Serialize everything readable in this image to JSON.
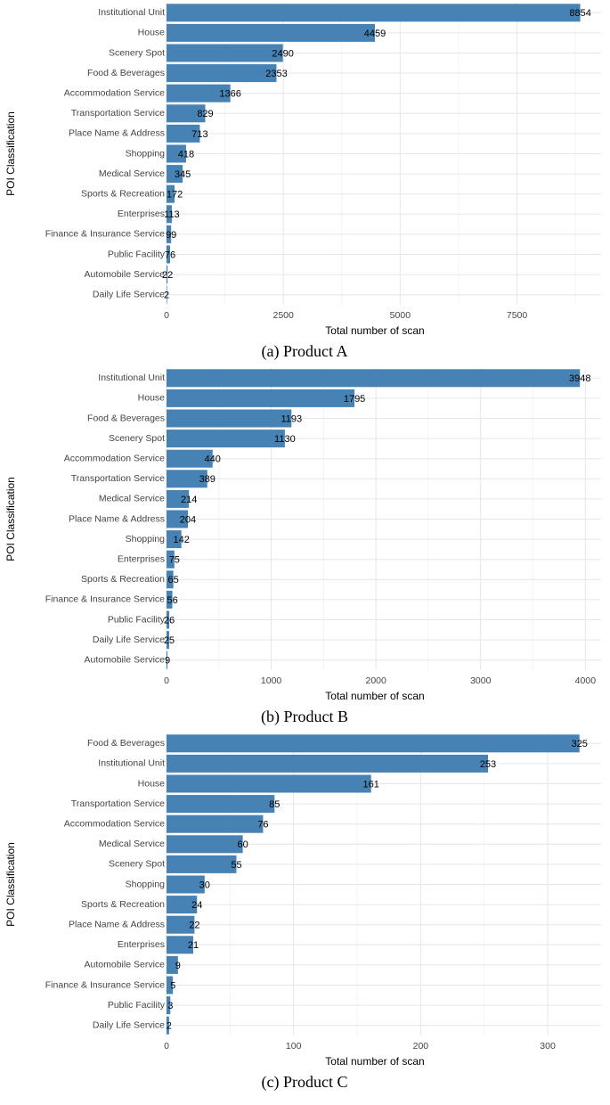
{
  "colors": {
    "bar": "#4682b4",
    "grid": "#e6e6e6",
    "grid_minor": "#f1f1f1"
  },
  "chart_data": [
    {
      "type": "bar",
      "orientation": "horizontal",
      "caption": "(a) Product A",
      "xlabel": "Total number of scan",
      "ylabel": "POI Classification",
      "xlim": [
        0,
        9300
      ],
      "xticks": [
        0,
        2500,
        5000,
        7500
      ],
      "xtick_labels": [
        "0",
        "2500",
        "5000",
        "7500"
      ],
      "categories": [
        "Institutional Unit",
        "House",
        "Scenery Spot",
        "Food & Beverages",
        "Accommodation Service",
        "Transportation Service",
        "Place Name & Address",
        "Shopping",
        "Medical Service",
        "Sports & Recreation",
        "Enterprises",
        "Finance & Insurance Service",
        "Public Facility",
        "Automobile Service",
        "Daily Life Service"
      ],
      "values": [
        8854,
        4459,
        2490,
        2353,
        1366,
        829,
        713,
        418,
        345,
        172,
        113,
        99,
        76,
        22,
        2
      ]
    },
    {
      "type": "bar",
      "orientation": "horizontal",
      "caption": "(b) Product B",
      "xlabel": "Total number of scan",
      "ylabel": "POI Classification",
      "xlim": [
        0,
        4150
      ],
      "xticks": [
        0,
        1000,
        2000,
        3000,
        4000
      ],
      "xtick_labels": [
        "0",
        "1000",
        "2000",
        "3000",
        "4000"
      ],
      "categories": [
        "Institutional Unit",
        "House",
        "Food & Beverages",
        "Scenery Spot",
        "Accommodation Service",
        "Transportation Service",
        "Medical Service",
        "Place Name & Address",
        "Shopping",
        "Enterprises",
        "Sports & Recreation",
        "Finance & Insurance Service",
        "Public Facility",
        "Daily Life Service",
        "Automobile Service"
      ],
      "values": [
        3948,
        1795,
        1193,
        1130,
        440,
        389,
        214,
        204,
        142,
        75,
        65,
        56,
        26,
        25,
        9
      ]
    },
    {
      "type": "bar",
      "orientation": "horizontal",
      "caption": "(c) Product C",
      "xlabel": "Total number of scan",
      "ylabel": "POI Classification",
      "xlim": [
        0,
        342
      ],
      "xticks": [
        0,
        100,
        200,
        300
      ],
      "xtick_labels": [
        "0",
        "100",
        "200",
        "300"
      ],
      "categories": [
        "Food & Beverages",
        "Institutional Unit",
        "House",
        "Transportation Service",
        "Accommodation Service",
        "Medical Service",
        "Scenery Spot",
        "Shopping",
        "Sports & Recreation",
        "Place Name & Address",
        "Enterprises",
        "Automobile Service",
        "Finance & Insurance Service",
        "Public Facility",
        "Daily Life Service"
      ],
      "values": [
        325,
        253,
        161,
        85,
        76,
        60,
        55,
        30,
        24,
        22,
        21,
        9,
        5,
        3,
        2
      ]
    }
  ]
}
